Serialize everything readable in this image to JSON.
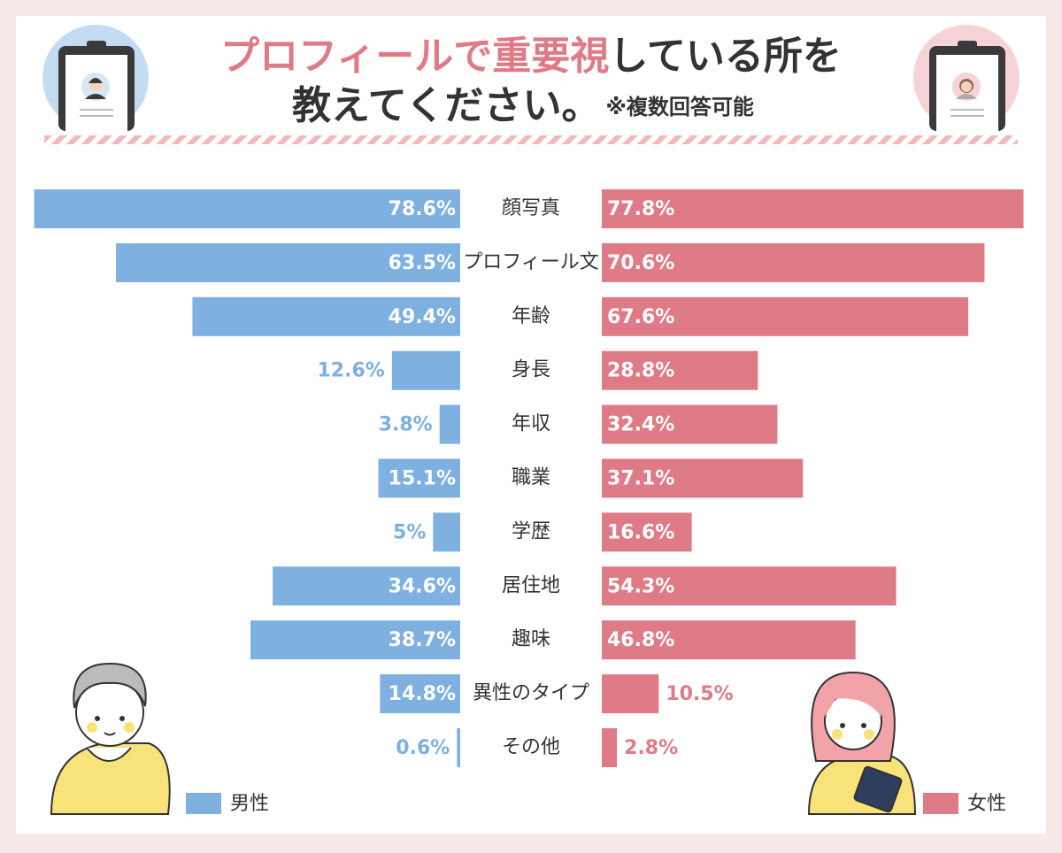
{
  "chart_data": {
    "type": "butterfly",
    "title_parts": [
      "プロフィールで重要視",
      "している所を",
      "教えてください。"
    ],
    "note": "※複数回答可能",
    "categories": [
      "顔写真",
      "プロフィール文",
      "年齢",
      "身長",
      "年収",
      "職業",
      "学歴",
      "居住地",
      "趣味",
      "異性のタイプ",
      "その他"
    ],
    "xlim": [
      0,
      80
    ],
    "series": [
      {
        "name": "男性",
        "color": "#7eb0e0",
        "side": "left",
        "values": [
          78.6,
          63.5,
          49.4,
          12.6,
          3.8,
          15.1,
          5,
          34.6,
          38.7,
          14.8,
          0.6
        ],
        "value_labels": [
          "78.6%",
          "63.5%",
          "49.4%",
          "12.6%",
          "3.8%",
          "15.1%",
          "5%",
          "34.6%",
          "38.7%",
          "14.8%",
          "0.6%"
        ]
      },
      {
        "name": "女性",
        "color": "#de7b87",
        "side": "right",
        "values": [
          77.8,
          70.6,
          67.6,
          28.8,
          32.4,
          37.1,
          16.6,
          54.3,
          46.8,
          10.5,
          2.8
        ],
        "value_labels": [
          "77.8%",
          "70.6%",
          "67.6%",
          "28.8%",
          "32.4%",
          "37.1%",
          "16.6%",
          "54.3%",
          "46.8%",
          "10.5%",
          "2.8%"
        ]
      }
    ]
  }
}
